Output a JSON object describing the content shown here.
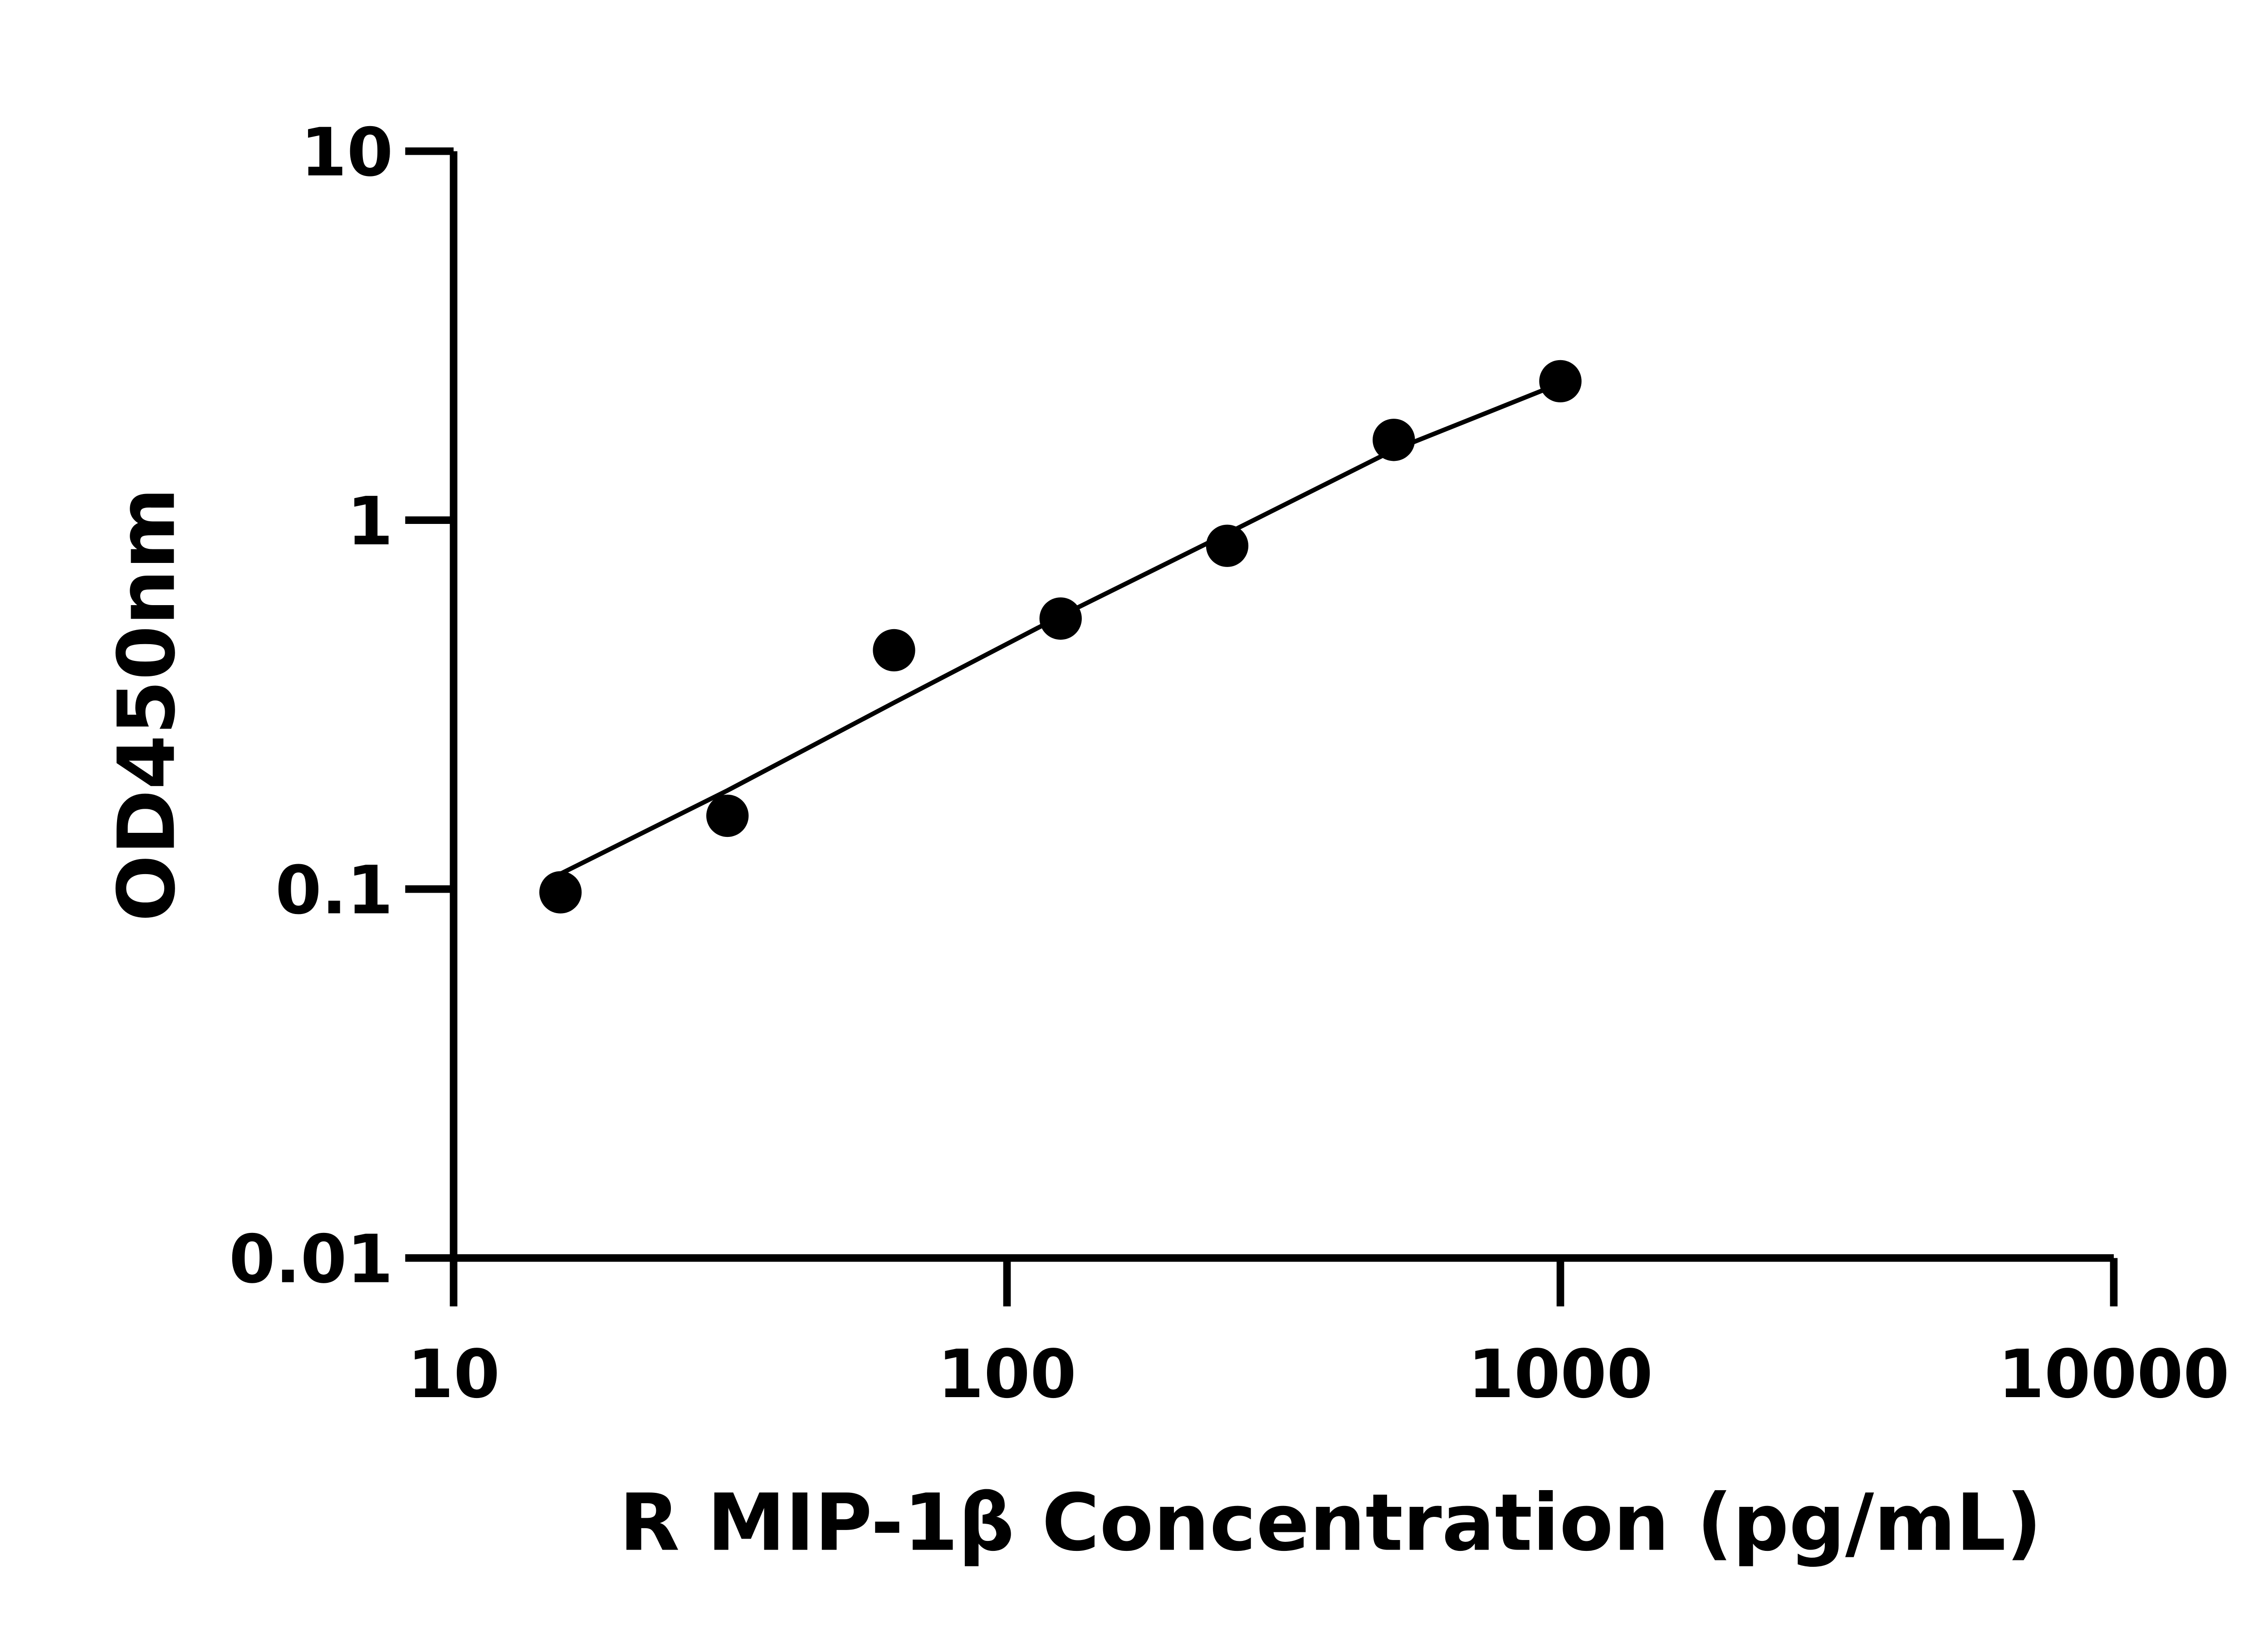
{
  "chart_data": {
    "type": "scatter",
    "title": "",
    "xlabel": "R MIP-1β Concentration (pg/mL)",
    "ylabel": "OD450nm",
    "xscale": "log",
    "yscale": "log",
    "xlim": [
      10,
      10000
    ],
    "ylim": [
      0.01,
      10
    ],
    "xticks": [
      "10",
      "100",
      "1000",
      "10000"
    ],
    "yticks": [
      "0.01",
      "0.1",
      "1",
      "10"
    ],
    "grid": false,
    "points": {
      "x": [
        15.6,
        31.25,
        62.5,
        125,
        250,
        500,
        1000
      ],
      "y": [
        0.098,
        0.158,
        0.444,
        0.541,
        0.852,
        1.65,
        2.38
      ]
    },
    "fit_curve": {
      "x": [
        15.6,
        31.25,
        62.5,
        125,
        250,
        500,
        1000
      ],
      "y": [
        0.11,
        0.185,
        0.32,
        0.55,
        0.92,
        1.55,
        2.35
      ]
    },
    "colors": {
      "points": "#000000",
      "line": "#000000",
      "axes": "#000000"
    }
  }
}
